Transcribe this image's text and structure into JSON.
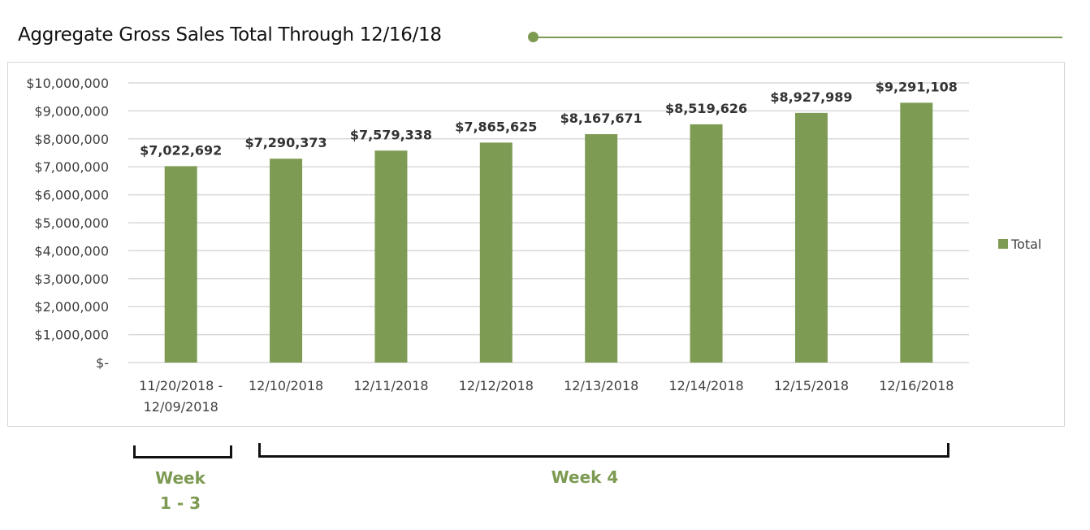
{
  "header": {
    "title": "Aggregate Gross Sales Total Through 12/16/18"
  },
  "colors": {
    "accent": "#7d9a52",
    "bar": "#7e9b54",
    "gridline": "#d9d9d9",
    "text": "#404040",
    "bracket": "#111111"
  },
  "chart_data": {
    "type": "bar",
    "title": "Aggregate Gross Sales Total Through 12/16/18",
    "xlabel": "",
    "ylabel": "",
    "categories": [
      [
        "11/20/2018 -",
        "12/09/2018"
      ],
      [
        "12/10/2018"
      ],
      [
        "12/11/2018"
      ],
      [
        "12/12/2018"
      ],
      [
        "12/13/2018"
      ],
      [
        "12/14/2018"
      ],
      [
        "12/15/2018"
      ],
      [
        "12/16/2018"
      ]
    ],
    "series": [
      {
        "name": "Total",
        "values": [
          7022692,
          7290373,
          7579338,
          7865625,
          8167671,
          8519626,
          8927989,
          9291108
        ],
        "data_labels": [
          "$7,022,692",
          "$7,290,373",
          "$7,579,338",
          "$7,865,625",
          "$8,167,671",
          "$8,519,626",
          "$8,927,989",
          "$9,291,108"
        ]
      }
    ],
    "ylim": [
      0,
      10000000
    ],
    "yticks": [
      {
        "value": 0,
        "label": "$-"
      },
      {
        "value": 1000000,
        "label": "$1,000,000"
      },
      {
        "value": 2000000,
        "label": "$2,000,000"
      },
      {
        "value": 3000000,
        "label": "$3,000,000"
      },
      {
        "value": 4000000,
        "label": "$4,000,000"
      },
      {
        "value": 5000000,
        "label": "$5,000,000"
      },
      {
        "value": 6000000,
        "label": "$6,000,000"
      },
      {
        "value": 7000000,
        "label": "$7,000,000"
      },
      {
        "value": 8000000,
        "label": "$8,000,000"
      },
      {
        "value": 9000000,
        "label": "$9,000,000"
      },
      {
        "value": 10000000,
        "label": "$10,000,000"
      }
    ],
    "grid": true,
    "legend": {
      "position": "right",
      "entries": [
        "Total"
      ]
    }
  },
  "annotations": {
    "groups": [
      {
        "label_lines": [
          "Week",
          "1 - 3"
        ],
        "covers_categories": [
          0,
          0
        ]
      },
      {
        "label_lines": [
          "Week 4"
        ],
        "covers_categories": [
          1,
          7
        ]
      }
    ]
  }
}
